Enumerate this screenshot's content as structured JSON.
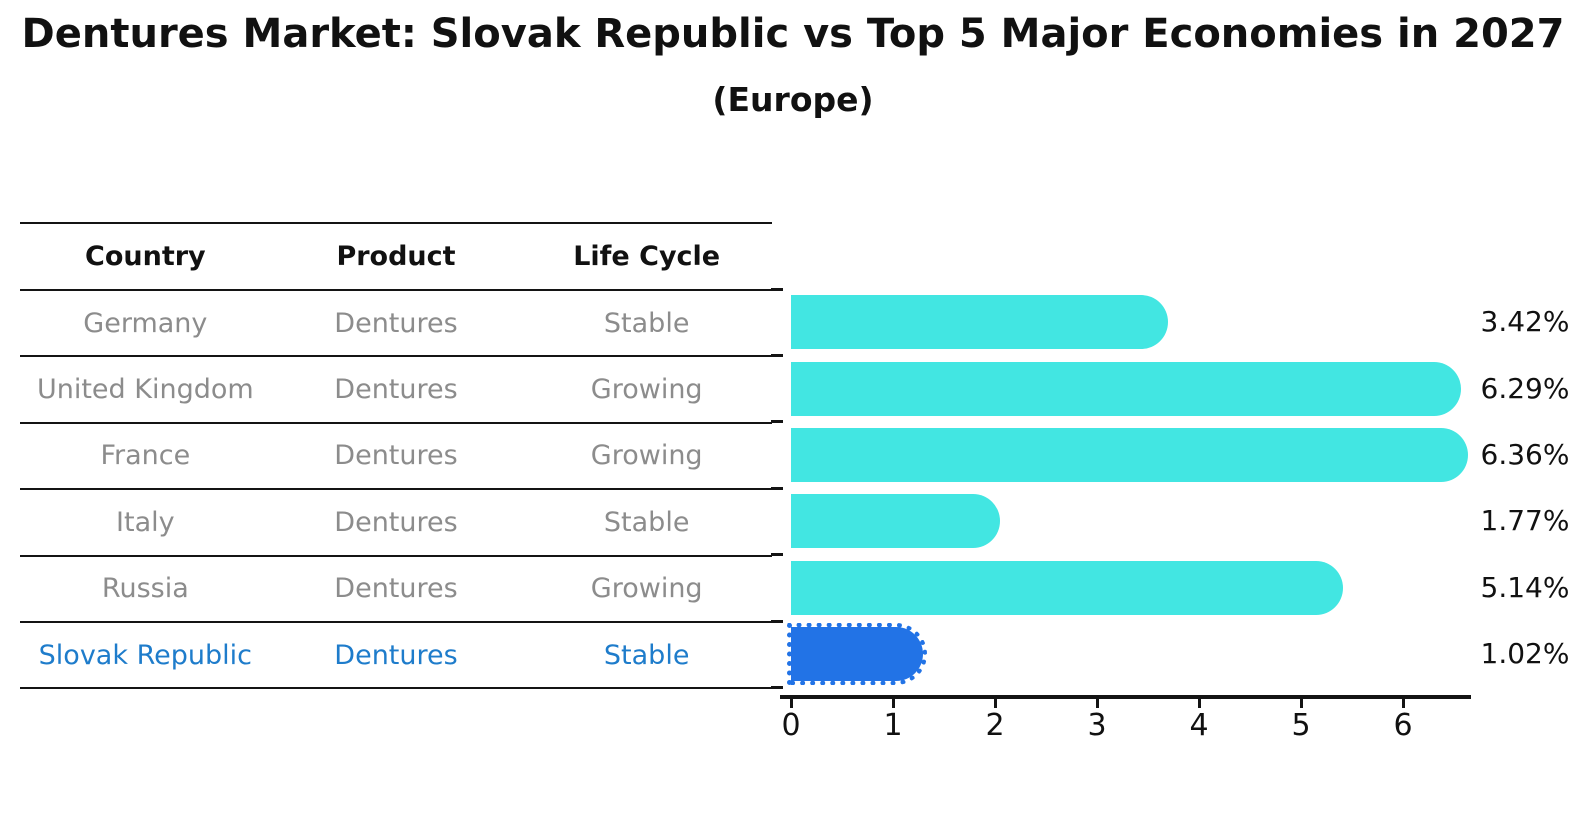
{
  "title": "Dentures Market: Slovak Republic vs Top 5 Major Economies in 2027",
  "subtitle": "(Europe)",
  "table": {
    "headers": {
      "country": "Country",
      "product": "Product",
      "life_cycle": "Life Cycle"
    },
    "rows": [
      {
        "country": "Germany",
        "product": "Dentures",
        "life_cycle": "Stable",
        "highlight": false
      },
      {
        "country": "United Kingdom",
        "product": "Dentures",
        "life_cycle": "Growing",
        "highlight": false
      },
      {
        "country": "France",
        "product": "Dentures",
        "life_cycle": "Growing",
        "highlight": false
      },
      {
        "country": "Italy",
        "product": "Dentures",
        "life_cycle": "Stable",
        "highlight": false
      },
      {
        "country": "Russia",
        "product": "Dentures",
        "life_cycle": "Growing",
        "highlight": true
      },
      {
        "country": "Slovak Republic",
        "product": "Dentures",
        "life_cycle": "Stable",
        "highlight": true
      }
    ]
  },
  "chart_data": {
    "type": "bar",
    "orientation": "horizontal",
    "title": "Dentures Market: Slovak Republic vs Top 5 Major Economies in 2027 (Europe)",
    "categories": [
      "Germany",
      "United Kingdom",
      "France",
      "Italy",
      "Russia",
      "Slovak Republic"
    ],
    "values": [
      3.42,
      6.29,
      6.36,
      1.77,
      5.14,
      1.02
    ],
    "value_labels": [
      "3.42%",
      "6.29%",
      "6.36%",
      "1.77%",
      "5.14%",
      "1.02%"
    ],
    "xlabel": "",
    "ylabel": "",
    "xlim": [
      0,
      6.66
    ],
    "xticks": [
      0,
      1,
      2,
      3,
      4,
      5,
      6
    ],
    "grid": false,
    "legend": false,
    "bar_color": "#42e6e2",
    "highlight_color": "#2273e6",
    "highlight_index": 5,
    "highlight_style": "dotted-edge"
  },
  "colors": {
    "text_primary": "#111111",
    "text_muted": "#8c8c8c",
    "text_highlight": "#1e7ccb",
    "line": "#141414",
    "background": "#ffffff"
  }
}
